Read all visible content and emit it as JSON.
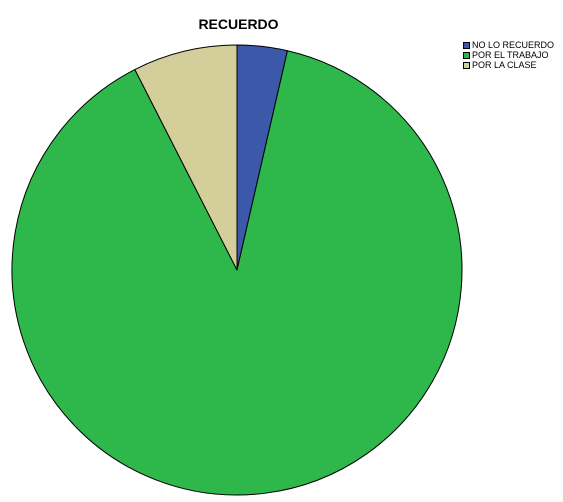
{
  "chart_data": {
    "type": "pie",
    "title": "RECUERDO",
    "legend_position": "top-right",
    "categories": [
      "NO LO RECUERDO",
      "POR EL TRABAJO",
      "POR LA CLASE"
    ],
    "values": [
      3.6,
      88.9,
      7.5
    ],
    "colors": [
      "#3c58a8",
      "#2eb84b",
      "#d4cf9a"
    ],
    "start_angle_deg": 0,
    "direction": "clockwise"
  }
}
